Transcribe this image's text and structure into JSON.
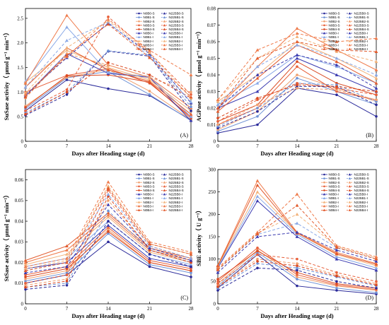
{
  "chart_data": [
    {
      "type": "line",
      "tag": "(A)",
      "xlabel": "Days after Heading stage (d)",
      "ylabel": "SuSase activity（ μmol g⁻¹ min⁻¹）",
      "x": [
        0,
        7,
        14,
        21,
        28
      ],
      "xticks": [
        "0",
        "7",
        "14",
        "21",
        "28"
      ],
      "ylim": [
        0,
        2.7
      ],
      "yticks": [
        0,
        0.5,
        1.0,
        1.5,
        2.0,
        2.5
      ],
      "ytick_labels": [
        "0",
        "0.5",
        "1.0",
        "1.5",
        "2.0",
        "2.5"
      ],
      "legend_left": [
        "N0B0-S",
        "N0B1-S",
        "N0B2-S",
        "N0B3-S",
        "N0B4-S",
        "N0B0-I",
        "N0B1-I",
        "N0B2-I",
        "N0B3-I",
        "N0B4-I"
      ],
      "legend_right": [
        "N225B0-S",
        "N225B1-S",
        "N225B2-S",
        "N225B3-S",
        "N225B4-S",
        "N225B0-I",
        "N225B1-I",
        "N225B2-I",
        "N225B3-I",
        "N225B4-I"
      ],
      "series": [
        {
          "name": "N0B0-S",
          "values": [
            0.62,
            1.25,
            1.07,
            0.93,
            0.43
          ]
        },
        {
          "name": "N0B1-S",
          "values": [
            0.66,
            1.29,
            1.42,
            0.95,
            0.42
          ]
        },
        {
          "name": "N0B2-S",
          "values": [
            0.72,
            1.3,
            1.46,
            1.02,
            0.44
          ]
        },
        {
          "name": "N0B3-S",
          "values": [
            1.0,
            1.34,
            1.48,
            1.18,
            0.5
          ]
        },
        {
          "name": "N0B4-S",
          "values": [
            0.69,
            1.33,
            1.35,
            1.2,
            0.47
          ]
        },
        {
          "name": "N0B0-I",
          "values": [
            0.92,
            1.78,
            1.38,
            1.3,
            0.42
          ]
        },
        {
          "name": "N0B1-I",
          "values": [
            1.22,
            2.32,
            1.4,
            1.32,
            0.5
          ]
        },
        {
          "name": "N0B2-I",
          "values": [
            1.2,
            1.85,
            1.5,
            1.25,
            0.62
          ]
        },
        {
          "name": "N0B3-I",
          "values": [
            1.18,
            2.56,
            1.55,
            1.3,
            0.68
          ]
        },
        {
          "name": "N0B4-I",
          "values": [
            1.1,
            1.9,
            1.45,
            1.22,
            0.55
          ]
        },
        {
          "name": "N225B0-S",
          "values": [
            0.53,
            0.95,
            1.83,
            1.73,
            0.62
          ]
        },
        {
          "name": "N225B1-S",
          "values": [
            0.58,
            1.0,
            1.84,
            1.75,
            0.7
          ]
        },
        {
          "name": "N225B2-S",
          "values": [
            0.88,
            1.78,
            1.55,
            1.3,
            1.0
          ]
        },
        {
          "name": "N225B3-S",
          "values": [
            0.62,
            1.05,
            2.53,
            1.8,
            0.95
          ]
        },
        {
          "name": "N225B4-S",
          "values": [
            0.55,
            1.0,
            1.6,
            1.35,
            0.88
          ]
        },
        {
          "name": "N225B0-I",
          "values": [
            0.95,
            1.7,
            2.4,
            1.78,
            0.78
          ]
        },
        {
          "name": "N225B1-I",
          "values": [
            1.1,
            2.05,
            2.42,
            1.72,
            0.8
          ]
        },
        {
          "name": "N225B2-I",
          "values": [
            0.98,
            1.9,
            2.45,
            1.8,
            0.88
          ]
        },
        {
          "name": "N225B3-I",
          "values": [
            0.95,
            1.72,
            2.48,
            1.85,
            1.35
          ]
        },
        {
          "name": "N225B4-I",
          "values": [
            0.9,
            1.75,
            2.38,
            1.7,
            0.9
          ]
        }
      ]
    },
    {
      "type": "line",
      "tag": "(B)",
      "xlabel": "Days after Heading stage (d)",
      "ylabel": "AGPase activity（ μmol g⁻¹ min⁻¹）",
      "x": [
        0,
        7,
        14,
        21,
        28
      ],
      "xticks": [
        "0",
        "7",
        "14",
        "21",
        "28"
      ],
      "ylim": [
        0,
        0.08
      ],
      "yticks": [
        0,
        0.01,
        0.02,
        0.03,
        0.04,
        0.05,
        0.06,
        0.07,
        0.08
      ],
      "ytick_labels": [
        "0",
        "0.01",
        "0.02",
        "0.03",
        "0.04",
        "0.05",
        "0.06",
        "0.07",
        "0.08"
      ],
      "legend_left": [
        "N0B0-S",
        "N0B1-S",
        "N0B2-S",
        "N0B3-S",
        "N0B4-S",
        "N0B0-I",
        "N0B1-I",
        "N0B2-I",
        "N0B3-I",
        "N0B4-I"
      ],
      "legend_right": [
        "N225B0-S",
        "N225B1-S",
        "N225B2-S",
        "N225B3-S",
        "N225B4-S",
        "N225B0-I",
        "N225B1-I",
        "N225B2-I",
        "N225B3-I",
        "N225B4-I"
      ],
      "series": [
        {
          "name": "N0B0-S",
          "values": [
            0.005,
            0.01,
            0.032,
            0.028,
            0.015
          ]
        },
        {
          "name": "N0B1-S",
          "values": [
            0.006,
            0.015,
            0.038,
            0.03,
            0.022
          ]
        },
        {
          "name": "N0B2-S",
          "values": [
            0.007,
            0.018,
            0.04,
            0.032,
            0.024
          ]
        },
        {
          "name": "N0B3-S",
          "values": [
            0.01,
            0.02,
            0.045,
            0.03,
            0.025
          ]
        },
        {
          "name": "N0B4-S",
          "values": [
            0.012,
            0.022,
            0.048,
            0.035,
            0.028
          ]
        },
        {
          "name": "N0B0-I",
          "values": [
            0.02,
            0.03,
            0.05,
            0.04,
            0.03
          ]
        },
        {
          "name": "N0B1-I",
          "values": [
            0.022,
            0.035,
            0.052,
            0.045,
            0.035
          ]
        },
        {
          "name": "N0B2-I",
          "values": [
            0.024,
            0.04,
            0.06,
            0.05,
            0.038
          ]
        },
        {
          "name": "N0B3-I",
          "values": [
            0.02,
            0.045,
            0.068,
            0.055,
            0.043
          ]
        },
        {
          "name": "N0B4-I",
          "values": [
            0.018,
            0.038,
            0.058,
            0.048,
            0.035
          ]
        },
        {
          "name": "N225B0-S",
          "values": [
            0.008,
            0.018,
            0.033,
            0.033,
            0.022
          ]
        },
        {
          "name": "N225B1-S",
          "values": [
            0.009,
            0.02,
            0.035,
            0.034,
            0.024
          ]
        },
        {
          "name": "N225B2-S",
          "values": [
            0.01,
            0.022,
            0.032,
            0.031,
            0.025
          ]
        },
        {
          "name": "N225B3-S",
          "values": [
            0.012,
            0.025,
            0.035,
            0.032,
            0.028
          ]
        },
        {
          "name": "N225B4-S",
          "values": [
            0.014,
            0.026,
            0.034,
            0.033,
            0.03
          ]
        },
        {
          "name": "N225B0-I",
          "values": [
            0.02,
            0.04,
            0.052,
            0.046,
            0.032
          ]
        },
        {
          "name": "N225B1-I",
          "values": [
            0.022,
            0.045,
            0.058,
            0.05,
            0.04
          ]
        },
        {
          "name": "N225B2-I",
          "values": [
            0.025,
            0.05,
            0.063,
            0.054,
            0.048
          ]
        },
        {
          "name": "N225B3-I",
          "values": [
            0.025,
            0.055,
            0.065,
            0.06,
            0.062
          ]
        },
        {
          "name": "N225B4-I",
          "values": [
            0.02,
            0.05,
            0.06,
            0.055,
            0.054
          ]
        }
      ]
    },
    {
      "type": "line",
      "tag": "(C)",
      "xlabel": "Days after Heading stage (d)",
      "ylabel": "StSase activity（ μmol g⁻¹ min⁻¹）",
      "x": [
        0,
        7,
        14,
        21,
        28
      ],
      "xticks": [
        "0",
        "7",
        "14",
        "21",
        "28"
      ],
      "ylim": [
        0,
        0.065
      ],
      "yticks": [
        0,
        0.01,
        0.02,
        0.03,
        0.04,
        0.05,
        0.06
      ],
      "ytick_labels": [
        "0",
        "0.01",
        "0.02",
        "0.03",
        "0.04",
        "0.05",
        "0.06"
      ],
      "legend_left": [
        "N0B0-S",
        "N0B1-S",
        "N0B2-S",
        "N0B3-S",
        "N0B4-S",
        "N0B0-I",
        "N0B1-I",
        "N0B2-I",
        "N0B3-I",
        "N0B4-I"
      ],
      "legend_right": [
        "N225B0-S",
        "N225B1-S",
        "N225B2-S",
        "N225B3-S",
        "N225B4-S",
        "N225B0-I",
        "N225B1-I",
        "N225B2-I",
        "N225B3-I",
        "N225B4-I"
      ],
      "series": [
        {
          "name": "N0B0-S",
          "values": [
            0.01,
            0.014,
            0.03,
            0.018,
            0.013
          ]
        },
        {
          "name": "N0B1-S",
          "values": [
            0.011,
            0.015,
            0.034,
            0.019,
            0.015
          ]
        },
        {
          "name": "N0B2-S",
          "values": [
            0.012,
            0.016,
            0.036,
            0.02,
            0.016
          ]
        },
        {
          "name": "N0B3-S",
          "values": [
            0.014,
            0.018,
            0.037,
            0.021,
            0.017
          ]
        },
        {
          "name": "N0B4-S",
          "values": [
            0.013,
            0.017,
            0.035,
            0.02,
            0.016
          ]
        },
        {
          "name": "N0B0-I",
          "values": [
            0.017,
            0.02,
            0.038,
            0.022,
            0.018
          ]
        },
        {
          "name": "N0B1-I",
          "values": [
            0.018,
            0.022,
            0.04,
            0.024,
            0.019
          ]
        },
        {
          "name": "N0B2-I",
          "values": [
            0.019,
            0.024,
            0.042,
            0.025,
            0.02
          ]
        },
        {
          "name": "N0B3-I",
          "values": [
            0.02,
            0.026,
            0.043,
            0.026,
            0.021
          ]
        },
        {
          "name": "N0B4-I",
          "values": [
            0.021,
            0.028,
            0.044,
            0.027,
            0.022
          ]
        },
        {
          "name": "N225B0-S",
          "values": [
            0.007,
            0.009,
            0.04,
            0.024,
            0.018
          ]
        },
        {
          "name": "N225B1-S",
          "values": [
            0.008,
            0.01,
            0.045,
            0.026,
            0.02
          ]
        },
        {
          "name": "N225B2-S",
          "values": [
            0.009,
            0.012,
            0.05,
            0.027,
            0.021
          ]
        },
        {
          "name": "N225B3-S",
          "values": [
            0.01,
            0.014,
            0.055,
            0.028,
            0.022
          ]
        },
        {
          "name": "N225B4-S",
          "values": [
            0.008,
            0.011,
            0.052,
            0.026,
            0.02
          ]
        },
        {
          "name": "N225B0-I",
          "values": [
            0.015,
            0.018,
            0.048,
            0.027,
            0.021
          ]
        },
        {
          "name": "N225B1-I",
          "values": [
            0.016,
            0.02,
            0.053,
            0.028,
            0.022
          ]
        },
        {
          "name": "N225B2-I",
          "values": [
            0.017,
            0.021,
            0.057,
            0.029,
            0.024
          ]
        },
        {
          "name": "N225B3-I",
          "values": [
            0.018,
            0.022,
            0.059,
            0.03,
            0.025
          ]
        },
        {
          "name": "N225B4-I",
          "values": [
            0.016,
            0.02,
            0.056,
            0.029,
            0.024
          ]
        }
      ]
    },
    {
      "type": "line",
      "tag": "(D)",
      "xlabel": "Days after Heading stage (d)",
      "ylabel": "SBE activity（ U g⁻¹）",
      "x": [
        0,
        7,
        14,
        21,
        28
      ],
      "xticks": [
        "0",
        "7",
        "14",
        "21",
        "28"
      ],
      "ylim": [
        0,
        300
      ],
      "yticks": [
        0,
        50,
        100,
        150,
        200,
        250,
        300
      ],
      "ytick_labels": [
        "0",
        "50",
        "100",
        "150",
        "200",
        "250",
        "300"
      ],
      "legend_left": [
        "N0B0-S",
        "N0B1-S",
        "N0B2-S",
        "N0B3-S",
        "N0B4-S",
        "N0B0-I",
        "N0B1-I",
        "N0B2-I",
        "N0B3-I",
        "N0B4-I"
      ],
      "legend_right": [
        "N225B0-S",
        "N225B1-S",
        "N225B2-S",
        "N225B3-S",
        "N225B4-S",
        "N225B0-I",
        "N225B1-I",
        "N225B2-I",
        "N225B3-I",
        "N225B4-I"
      ],
      "series": [
        {
          "name": "N0B0-S",
          "values": [
            35,
            110,
            40,
            30,
            22
          ]
        },
        {
          "name": "N0B1-S",
          "values": [
            40,
            115,
            55,
            35,
            25
          ]
        },
        {
          "name": "N0B2-S",
          "values": [
            45,
            120,
            60,
            40,
            30
          ]
        },
        {
          "name": "N0B3-S",
          "values": [
            50,
            125,
            65,
            42,
            32
          ]
        },
        {
          "name": "N0B4-S",
          "values": [
            55,
            118,
            70,
            45,
            35
          ]
        },
        {
          "name": "N0B0-I",
          "values": [
            80,
            230,
            150,
            100,
            75
          ]
        },
        {
          "name": "N0B1-I",
          "values": [
            82,
            240,
            155,
            105,
            80
          ]
        },
        {
          "name": "N0B2-I",
          "values": [
            84,
            250,
            158,
            110,
            85
          ]
        },
        {
          "name": "N0B3-I",
          "values": [
            86,
            275,
            160,
            115,
            90
          ]
        },
        {
          "name": "N0B4-I",
          "values": [
            85,
            265,
            158,
            112,
            88
          ]
        },
        {
          "name": "N225B0-S",
          "values": [
            30,
            80,
            75,
            50,
            35
          ]
        },
        {
          "name": "N225B1-S",
          "values": [
            35,
            90,
            80,
            60,
            40
          ]
        },
        {
          "name": "N225B2-S",
          "values": [
            40,
            100,
            90,
            65,
            45
          ]
        },
        {
          "name": "N225B3-S",
          "values": [
            45,
            110,
            100,
            70,
            50
          ]
        },
        {
          "name": "N225B4-S",
          "values": [
            38,
            95,
            85,
            62,
            42
          ]
        },
        {
          "name": "N225B0-I",
          "values": [
            70,
            150,
            160,
            120,
            95
          ]
        },
        {
          "name": "N225B1-I",
          "values": [
            75,
            155,
            180,
            125,
            100
          ]
        },
        {
          "name": "N225B2-I",
          "values": [
            78,
            158,
            200,
            128,
            102
          ]
        },
        {
          "name": "N225B3-I",
          "values": [
            80,
            160,
            245,
            130,
            105
          ]
        },
        {
          "name": "N225B4-I",
          "values": [
            76,
            156,
            220,
            126,
            100
          ]
        }
      ]
    }
  ],
  "style": {
    "colors": [
      "#2a2a9a",
      "#6f92d6",
      "#f0a070",
      "#e8603a",
      "#d94820",
      "#3a3ab0",
      "#89a8e6",
      "#f2b27a",
      "#ef7a4a",
      "#e25a2c"
    ],
    "solid_groups": "N0 series",
    "dashed_groups": "N225 series",
    "marker_S": "circle",
    "marker_I": "triangle"
  }
}
